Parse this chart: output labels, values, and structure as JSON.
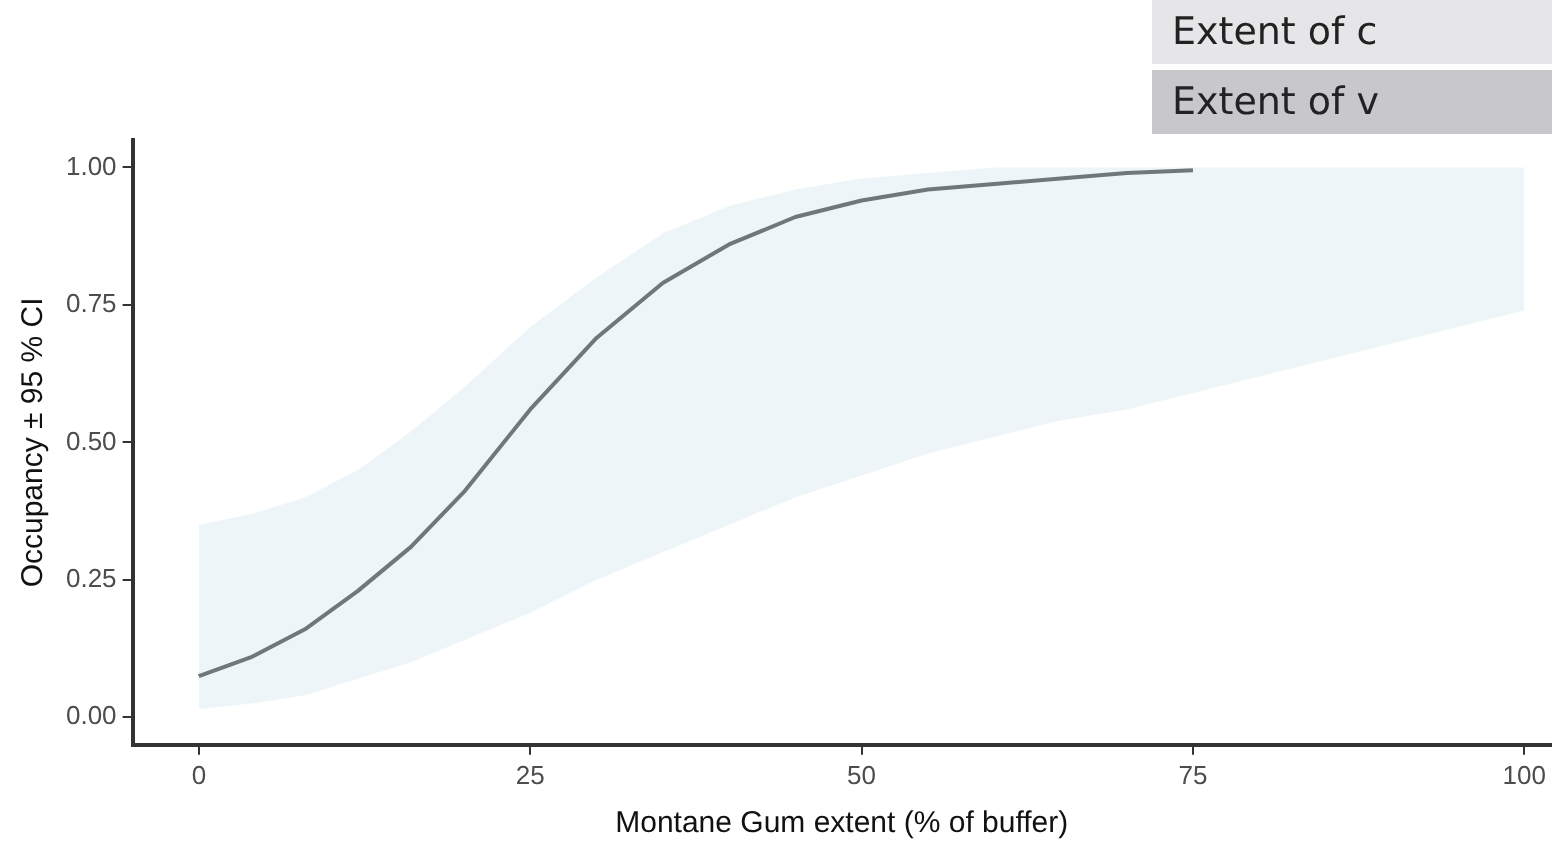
{
  "chart_data": {
    "type": "line",
    "xlabel": "Montane Gum extent (% of buffer)",
    "ylabel": "Occupancy ± 95 % CI",
    "annotations": [
      "Extent of c",
      "Extent of v"
    ],
    "x": [
      0,
      4,
      8,
      12,
      16,
      20,
      25,
      30,
      35,
      40,
      45,
      50,
      55,
      60,
      65,
      70,
      75,
      80,
      85,
      90,
      95,
      100
    ],
    "series": [
      {
        "color": "#1a1a1a",
        "values": [
          0.075,
          0.11,
          0.16,
          0.23,
          0.31,
          0.41,
          0.56,
          0.69,
          0.79,
          0.86,
          0.91,
          0.94,
          0.96,
          0.97,
          0.98,
          0.99,
          0.995,
          null,
          null,
          null,
          null,
          null
        ],
        "lower": [
          0.015,
          0.025,
          0.04,
          0.07,
          0.1,
          0.14,
          0.19,
          0.25,
          0.3,
          0.35,
          0.4,
          0.44,
          0.48,
          0.51,
          0.54,
          0.56,
          0.59,
          0.62,
          0.65,
          0.68,
          0.71,
          0.74
        ],
        "upper": [
          0.35,
          0.37,
          0.4,
          0.45,
          0.52,
          0.6,
          0.71,
          0.8,
          0.88,
          0.93,
          0.96,
          0.98,
          0.99,
          1.0,
          1.0,
          1.0,
          1.0,
          1.0,
          1.0,
          1.0,
          1.0,
          1.0
        ]
      }
    ],
    "xlim": [
      -5,
      102
    ],
    "ylim": [
      -0.05,
      1.05
    ],
    "xticks": [
      0,
      25,
      50,
      75,
      100
    ],
    "yticks": [
      {
        "value": 0,
        "label": "0.00"
      },
      {
        "value": 0.25,
        "label": "0.25"
      },
      {
        "value": 0.5,
        "label": "0.50"
      },
      {
        "value": 0.75,
        "label": "0.75"
      },
      {
        "value": 1,
        "label": "1.00"
      }
    ]
  }
}
